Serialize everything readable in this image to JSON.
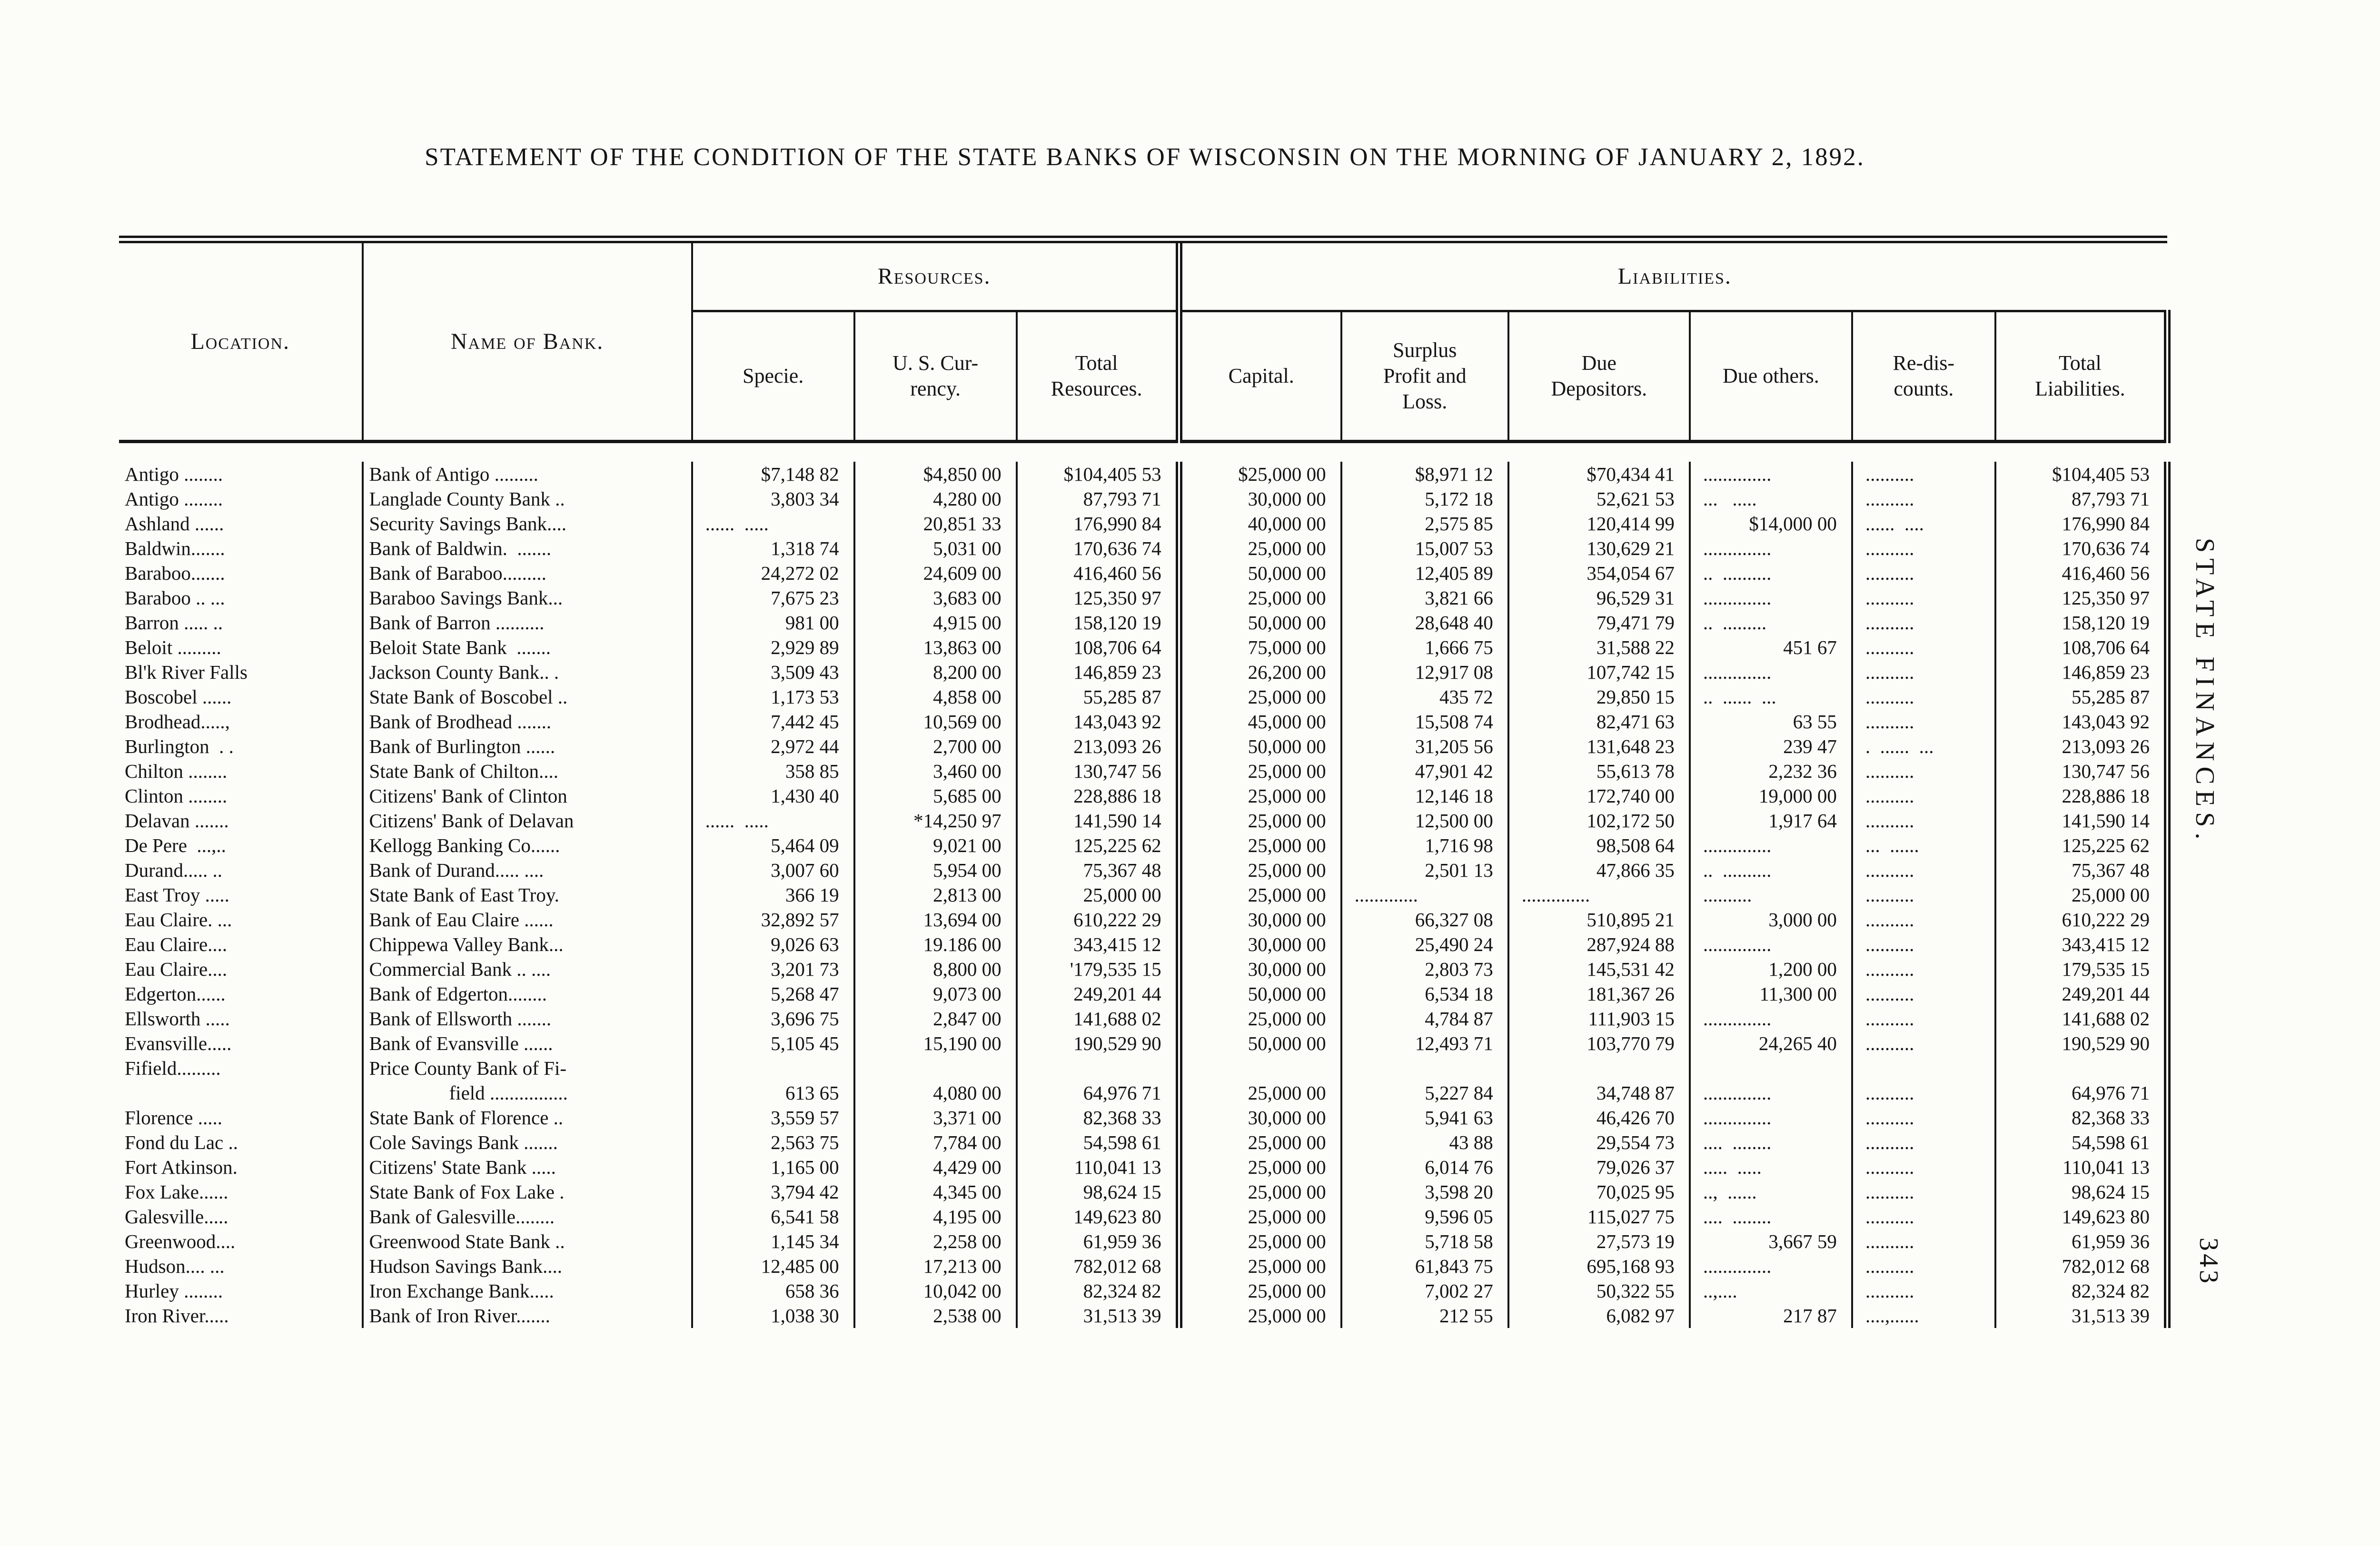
{
  "doc": {
    "title": "STATEMENT OF THE CONDITION OF THE STATE BANKS OF WISCONSIN ON THE MORNING OF JANUARY 2, 1892.",
    "side_text": "STATE FINANCES.",
    "page_number": "343"
  },
  "table": {
    "headers": {
      "location": "Location.",
      "name_of_bank": "Name of Bank.",
      "resources": "Resources.",
      "liabilities": "Liabilities.",
      "specie": "Specie.",
      "us_currency": "U. S. Cur-\nrency.",
      "total_resources": "Total\nResources.",
      "capital": "Capital.",
      "surplus": "Surplus\nProfit and\nLoss.",
      "due_depositors": "Due\nDepositors.",
      "due_others": "Due others.",
      "rediscounts": "Re-dis-\ncounts.",
      "total_liabilities": "Total\nLiabilities."
    },
    "rows": [
      {
        "loc": "Antigo ........",
        "name": "Bank of Antigo .........",
        "sp": "$7,148 82",
        "cur": "$4,850 00",
        "tr": "$104,405 53",
        "cap": "$25,000 00",
        "sur": "$8,971 12",
        "dep": "$70,434 41",
        "oth": "..............",
        "red": "..........",
        "tl": "$104,405 53"
      },
      {
        "loc": "Antigo ........",
        "name": "Langlade County Bank ..",
        "sp": "3,803 34",
        "cur": "4,280 00",
        "tr": "87,793 71",
        "cap": "30,000 00",
        "sur": "5,172 18",
        "dep": "52,621 53",
        "oth": "...   .....",
        "red": "..........",
        "tl": "87,793 71"
      },
      {
        "loc": "Ashland ......",
        "name": "Security Savings Bank....",
        "sp": "......  .....",
        "cur": "20,851 33",
        "tr": "176,990 84",
        "cap": "40,000 00",
        "sur": "2,575 85",
        "dep": "120,414 99",
        "oth": "$14,000 00",
        "red": "......  ....",
        "tl": "176,990 84"
      },
      {
        "loc": "Baldwin.......",
        "name": "Bank of Baldwin.  .......",
        "sp": "1,318 74",
        "cur": "5,031 00",
        "tr": "170,636 74",
        "cap": "25,000 00",
        "sur": "15,007 53",
        "dep": "130,629 21",
        "oth": "..............",
        "red": "..........",
        "tl": "170,636 74"
      },
      {
        "loc": "Baraboo.......",
        "name": "Bank of Baraboo.........",
        "sp": "24,272 02",
        "cur": "24,609 00",
        "tr": "416,460 56",
        "cap": "50,000 00",
        "sur": "12,405 89",
        "dep": "354,054 67",
        "oth": "..  ..........",
        "red": "..........",
        "tl": "416,460 56"
      },
      {
        "loc": "Baraboo .. ...",
        "name": "Baraboo Savings Bank...",
        "sp": "7,675 23",
        "cur": "3,683 00",
        "tr": "125,350 97",
        "cap": "25,000 00",
        "sur": "3,821 66",
        "dep": "96,529 31",
        "oth": "..............",
        "red": "..........",
        "tl": "125,350 97"
      },
      {
        "loc": "Barron ..... ..",
        "name": "Bank of Barron ..........",
        "sp": "981 00",
        "cur": "4,915 00",
        "tr": "158,120 19",
        "cap": "50,000 00",
        "sur": "28,648 40",
        "dep": "79,471 79",
        "oth": "..  .........",
        "red": "..........",
        "tl": "158,120 19"
      },
      {
        "loc": "Beloit .........",
        "name": "Beloit State Bank  .......",
        "sp": "2,929 89",
        "cur": "13,863 00",
        "tr": "108,706 64",
        "cap": "75,000 00",
        "sur": "1,666 75",
        "dep": "31,588 22",
        "oth": "451 67",
        "red": "..........",
        "tl": "108,706 64"
      },
      {
        "loc": "Bl'k River Falls",
        "name": "Jackson County Bank.. .",
        "sp": "3,509 43",
        "cur": "8,200 00",
        "tr": "146,859 23",
        "cap": "26,200 00",
        "sur": "12,917 08",
        "dep": "107,742 15",
        "oth": "..............",
        "red": "..........",
        "tl": "146,859 23"
      },
      {
        "loc": "Boscobel ......",
        "name": "State Bank of Boscobel ..",
        "sp": "1,173 53",
        "cur": "4,858 00",
        "tr": "55,285 87",
        "cap": "25,000 00",
        "sur": "435 72",
        "dep": "29,850 15",
        "oth": "..  ......  ...",
        "red": "..........",
        "tl": "55,285 87"
      },
      {
        "loc": "Brodhead.....,",
        "name": "Bank of Brodhead .......",
        "sp": "7,442 45",
        "cur": "10,569 00",
        "tr": "143,043 92",
        "cap": "45,000 00",
        "sur": "15,508 74",
        "dep": "82,471 63",
        "oth": "63 55",
        "red": "..........",
        "tl": "143,043 92"
      },
      {
        "loc": "Burlington  . .",
        "name": "Bank of Burlington ......",
        "sp": "2,972 44",
        "cur": "2,700 00",
        "tr": "213,093 26",
        "cap": "50,000 00",
        "sur": "31,205 56",
        "dep": "131,648 23",
        "oth": "239 47",
        "red": ".  ......  ...",
        "tl": "213,093 26"
      },
      {
        "loc": "Chilton ........",
        "name": "State Bank of Chilton....",
        "sp": "358 85",
        "cur": "3,460 00",
        "tr": "130,747 56",
        "cap": "25,000 00",
        "sur": "47,901 42",
        "dep": "55,613 78",
        "oth": "2,232 36",
        "red": "..........",
        "tl": "130,747 56"
      },
      {
        "loc": "Clinton ........",
        "name": "Citizens' Bank of Clinton",
        "sp": "1,430 40",
        "cur": "5,685 00",
        "tr": "228,886 18",
        "cap": "25,000 00",
        "sur": "12,146 18",
        "dep": "172,740 00",
        "oth": "19,000 00",
        "red": "..........",
        "tl": "228,886 18"
      },
      {
        "loc": "Delavan .......",
        "name": "Citizens' Bank of Delavan",
        "sp": "......  .....",
        "cur": "*14,250 97",
        "tr": "141,590 14",
        "cap": "25,000 00",
        "sur": "12,500 00",
        "dep": "102,172 50",
        "oth": "1,917 64",
        "red": "..........",
        "tl": "141,590 14"
      },
      {
        "loc": "De Pere  ...,..",
        "name": "Kellogg Banking Co......",
        "sp": "5,464 09",
        "cur": "9,021 00",
        "tr": "125,225 62",
        "cap": "25,000 00",
        "sur": "1,716 98",
        "dep": "98,508 64",
        "oth": "..............",
        "red": "...  ......",
        "tl": "125,225 62"
      },
      {
        "loc": "Durand..... ..",
        "name": "Bank of Durand..... ....",
        "sp": "3,007 60",
        "cur": "5,954 00",
        "tr": "75,367 48",
        "cap": "25,000 00",
        "sur": "2,501 13",
        "dep": "47,866 35",
        "oth": "..  ..........",
        "red": "..........",
        "tl": "75,367 48"
      },
      {
        "loc": "East Troy .....",
        "name": "State Bank of East Troy.",
        "sp": "366 19",
        "cur": "2,813 00",
        "tr": "25,000 00",
        "cap": "25,000 00",
        "sur": ".............",
        "dep": "..............",
        "oth": "..........",
        "red": "..........",
        "tl": "25,000 00"
      },
      {
        "loc": "Eau Claire. ...",
        "name": "Bank of Eau Claire ......",
        "sp": "32,892 57",
        "cur": "13,694 00",
        "tr": "610,222 29",
        "cap": "30,000 00",
        "sur": "66,327 08",
        "dep": "510,895 21",
        "oth": "3,000 00",
        "red": "..........",
        "tl": "610,222 29"
      },
      {
        "loc": "Eau Claire....",
        "name": "Chippewa Valley Bank...",
        "sp": "9,026 63",
        "cur": "19.186 00",
        "tr": "343,415 12",
        "cap": "30,000 00",
        "sur": "25,490 24",
        "dep": "287,924 88",
        "oth": "..............",
        "red": "..........",
        "tl": "343,415 12"
      },
      {
        "loc": "Eau Claire....",
        "name": "Commercial Bank .. ....",
        "sp": "3,201 73",
        "cur": "8,800 00",
        "tr": "'179,535 15",
        "cap": "30,000 00",
        "sur": "2,803 73",
        "dep": "145,531 42",
        "oth": "1,200 00",
        "red": "..........",
        "tl": "179,535 15"
      },
      {
        "loc": "Edgerton......",
        "name": "Bank of Edgerton........",
        "sp": "5,268 47",
        "cur": "9,073 00",
        "tr": "249,201 44",
        "cap": "50,000 00",
        "sur": "6,534 18",
        "dep": "181,367 26",
        "oth": "11,300 00",
        "red": "..........",
        "tl": "249,201 44"
      },
      {
        "loc": "Ellsworth .....",
        "name": "Bank of Ellsworth .......",
        "sp": "3,696 75",
        "cur": "2,847 00",
        "tr": "141,688 02",
        "cap": "25,000 00",
        "sur": "4,784 87",
        "dep": "111,903 15",
        "oth": "..............",
        "red": "..........",
        "tl": "141,688 02"
      },
      {
        "loc": "Evansville.....",
        "name": "Bank of Evansville ......",
        "sp": "5,105 45",
        "cur": "15,190 00",
        "tr": "190,529 90",
        "cap": "50,000 00",
        "sur": "12,493 71",
        "dep": "103,770 79",
        "oth": "24,265 40",
        "red": "..........",
        "tl": "190,529 90"
      },
      {
        "loc": "Fifield.........",
        "name": "Price County Bank of Fi-",
        "name2": "field ................",
        "sp": "613 65",
        "cur": "4,080 00",
        "tr": "64,976 71",
        "cap": "25,000 00",
        "sur": "5,227 84",
        "dep": "34,748 87",
        "oth": "..............",
        "red": "..........",
        "tl": "64,976 71"
      },
      {
        "loc": "Florence .....",
        "name": "State Bank of Florence ..",
        "sp": "3,559 57",
        "cur": "3,371 00",
        "tr": "82,368 33",
        "cap": "30,000 00",
        "sur": "5,941 63",
        "dep": "46,426 70",
        "oth": "..............",
        "red": "..........",
        "tl": "82,368 33"
      },
      {
        "loc": "Fond du Lac ..",
        "name": "Cole Savings Bank .......",
        "sp": "2,563 75",
        "cur": "7,784 00",
        "tr": "54,598 61",
        "cap": "25,000 00",
        "sur": "43 88",
        "dep": "29,554 73",
        "oth": "....  ........",
        "red": "..........",
        "tl": "54,598 61"
      },
      {
        "loc": "Fort Atkinson.",
        "name": "Citizens' State Bank .....",
        "sp": "1,165 00",
        "cur": "4,429 00",
        "tr": "110,041 13",
        "cap": "25,000 00",
        "sur": "6,014 76",
        "dep": "79,026 37",
        "oth": ".....  .....",
        "red": "..........",
        "tl": "110,041 13"
      },
      {
        "loc": "Fox Lake......",
        "name": "State Bank of Fox Lake .",
        "sp": "3,794 42",
        "cur": "4,345 00",
        "tr": "98,624 15",
        "cap": "25,000 00",
        "sur": "3,598 20",
        "dep": "70,025 95",
        "oth": "..,  ......",
        "red": "..........",
        "tl": "98,624 15"
      },
      {
        "loc": "Galesville.....",
        "name": "Bank of Galesville........",
        "sp": "6,541 58",
        "cur": "4,195 00",
        "tr": "149,623 80",
        "cap": "25,000 00",
        "sur": "9,596 05",
        "dep": "115,027 75",
        "oth": "....  ........",
        "red": "..........",
        "tl": "149,623 80"
      },
      {
        "loc": "Greenwood....",
        "name": "Greenwood State Bank ..",
        "sp": "1,145 34",
        "cur": "2,258 00",
        "tr": "61,959 36",
        "cap": "25,000 00",
        "sur": "5,718 58",
        "dep": "27,573 19",
        "oth": "3,667 59",
        "red": "..........",
        "tl": "61,959 36"
      },
      {
        "loc": "Hudson.... ...",
        "name": "Hudson Savings Bank....",
        "sp": "12,485 00",
        "cur": "17,213 00",
        "tr": "782,012 68",
        "cap": "25,000 00",
        "sur": "61,843 75",
        "dep": "695,168 93",
        "oth": "..............",
        "red": "..........",
        "tl": "782,012 68"
      },
      {
        "loc": "Hurley ........",
        "name": "Iron Exchange Bank.....",
        "sp": "658 36",
        "cur": "10,042 00",
        "tr": "82,324 82",
        "cap": "25,000 00",
        "sur": "7,002 27",
        "dep": "50,322 55",
        "oth": "..,....",
        "red": "..........",
        "tl": "82,324 82"
      },
      {
        "loc": "Iron River.....",
        "name": "Bank of Iron River.......",
        "sp": "1,038 30",
        "cur": "2,538 00",
        "tr": "31,513 39",
        "cap": "25,000 00",
        "sur": "212 55",
        "dep": "6,082 97",
        "oth": "217 87",
        "red": "....,......",
        "tl": "31,513 39"
      }
    ]
  }
}
